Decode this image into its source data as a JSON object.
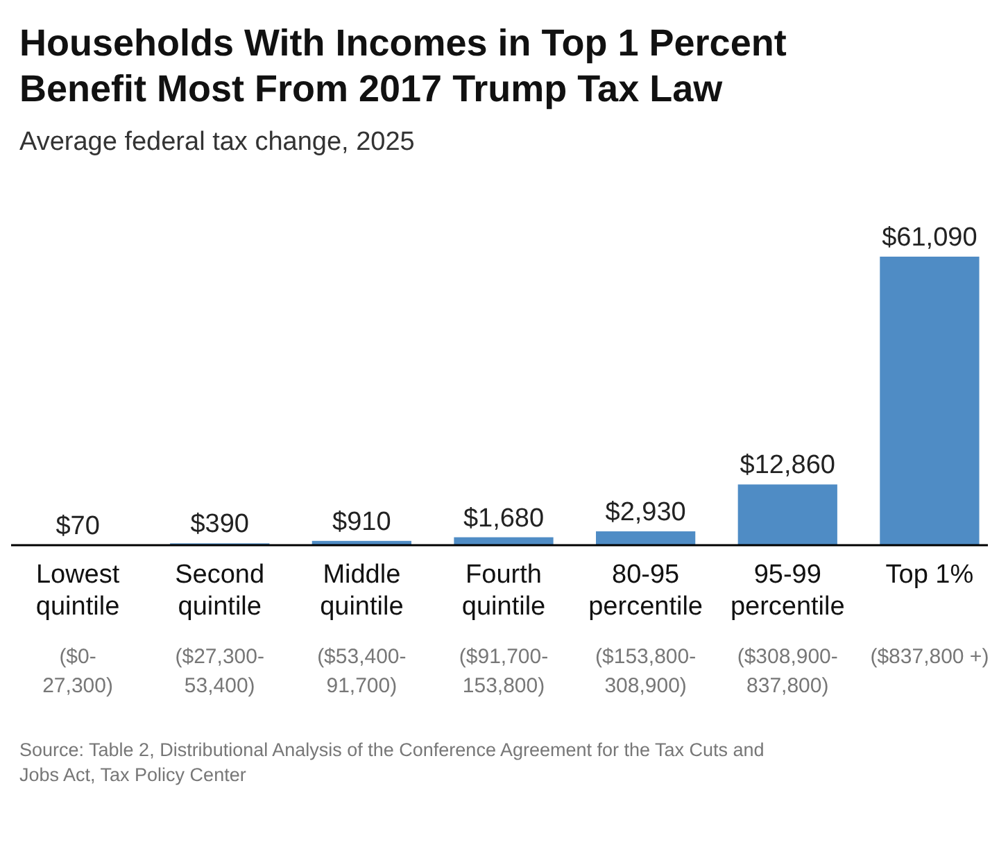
{
  "chart_data": {
    "type": "bar",
    "title": "Households With Incomes in Top 1 Percent Benefit Most From 2017 Trump Tax Law",
    "subtitle": "Average federal tax change, 2025",
    "categories": [
      "Lowest\nquintile\n\n($0-\n27,300)",
      "Second\nquintile\n\n($27,300-\n53,400)",
      "Middle\nquintile\n\n($53,400-\n91,700)",
      "Fourth\nquintile\n\n($91,700-\n153,800)",
      "80-95\npercentile\n\n($153,800-\n308,900)",
      "95-99\npercentile\n\n($308,900-\n837,800)",
      "Top 1%\n\n($837,800 +)"
    ],
    "values": [
      70,
      390,
      910,
      1680,
      2930,
      12860,
      61090
    ],
    "value_labels": [
      "$70",
      "$390",
      "$910",
      "$1,680",
      "$2,930",
      "$12,860",
      "$61,090"
    ],
    "color": "#4f8cc5",
    "annotations": [
      "Source: Table 2, Distributional Analysis of the Conference Agreement for the Tax Cuts and Jobs Act, Tax Policy Center"
    ]
  }
}
